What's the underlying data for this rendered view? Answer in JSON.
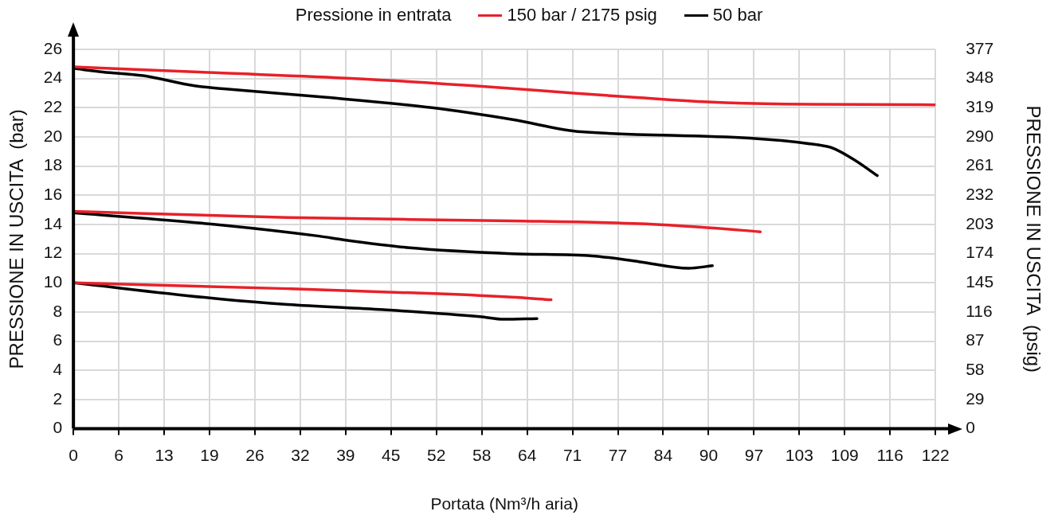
{
  "chart_data": {
    "type": "line",
    "legend_title": "Pressione in entrata",
    "legend": "top",
    "xlabel": "Portata (Nm³/h aria)",
    "ylabel": "PRESSIONE IN USCITA  (bar)",
    "y2label": "PRESSIONE IN USCITA  (psig)",
    "grid": true,
    "marker": "none",
    "line_style": "solid",
    "xlim": [
      0,
      122.36
    ],
    "xticks": [
      0,
      {
        "value": 6.44,
        "label": "6"
      },
      {
        "value": 12.88,
        "label": "13"
      },
      {
        "value": 19.32,
        "label": "19"
      },
      {
        "value": 25.76,
        "label": "26"
      },
      {
        "value": 32.2,
        "label": "32"
      },
      {
        "value": 38.64,
        "label": "39"
      },
      {
        "value": 45.08,
        "label": "45"
      },
      {
        "value": 51.52,
        "label": "52"
      },
      {
        "value": 57.96,
        "label": "58"
      },
      {
        "value": 64.4,
        "label": "64"
      },
      {
        "value": 70.84,
        "label": "71"
      },
      {
        "value": 77.28,
        "label": "77"
      },
      {
        "value": 83.72,
        "label": "84"
      },
      {
        "value": 90.16,
        "label": "90"
      },
      {
        "value": 96.6,
        "label": "97"
      },
      {
        "value": 103.04,
        "label": "103"
      },
      {
        "value": 109.48,
        "label": "109"
      },
      {
        "value": 115.92,
        "label": "116"
      },
      {
        "value": 122.36,
        "label": "122"
      }
    ],
    "ylim": [
      0,
      26
    ],
    "yticks": [
      0,
      2,
      4,
      6,
      8,
      10,
      12,
      14,
      16,
      18,
      20,
      22,
      24,
      26
    ],
    "y2lim": [
      0,
      377
    ],
    "y2ticks": [
      0,
      29,
      58,
      87,
      116,
      145,
      174,
      203,
      232,
      261,
      290,
      319,
      348,
      377
    ],
    "series": [
      {
        "name": "150 bar / 2175 psig",
        "color": "#e8202a",
        "x": [
          0,
          20,
          40,
          60,
          71,
          80,
          90,
          101,
          122.36
        ],
        "values": [
          24.8,
          24.4,
          24.0,
          23.4,
          23.0,
          22.7,
          22.4,
          22.25,
          22.2
        ]
      },
      {
        "name": "50 bar",
        "color": "#000000",
        "x": [
          0,
          4.2,
          9.9,
          17.2,
          21.3,
          34.9,
          50.9,
          62.2,
          72.1,
          107,
          110.6,
          114.1
        ],
        "values": [
          24.7,
          24.45,
          24.2,
          23.5,
          23.3,
          22.75,
          22.0,
          21.2,
          20.35,
          19.35,
          18.5,
          17.35
        ]
      },
      {
        "color": "#e8202a",
        "x": [
          0,
          30.4,
          62.2,
          80.4,
          90,
          97.5
        ],
        "values": [
          14.9,
          14.47,
          14.25,
          14.05,
          13.78,
          13.5
        ]
      },
      {
        "color": "#000000",
        "x": [
          0,
          21.3,
          34.9,
          38.3,
          47.4,
          62.2,
          73.6,
          80.4,
          87.3,
          90.7
        ],
        "values": [
          14.8,
          13.95,
          13.2,
          12.95,
          12.42,
          12.0,
          11.85,
          11.44,
          11.0,
          11.17
        ]
      },
      {
        "color": "#e8202a",
        "x": [
          0,
          30.4,
          52,
          62.2,
          67.8
        ],
        "values": [
          10,
          9.6,
          9.25,
          9.02,
          8.84
        ]
      },
      {
        "color": "#000000",
        "x": [
          0,
          21.3,
          30.4,
          44,
          57.7,
          61.1,
          65.8
        ],
        "values": [
          10,
          8.87,
          8.52,
          8.16,
          7.68,
          7.5,
          7.55
        ]
      }
    ]
  }
}
